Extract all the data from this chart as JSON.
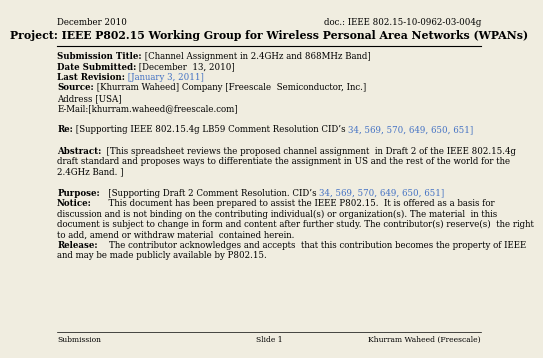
{
  "bg_color": "#f0ede0",
  "title": "Project: IEEE P802.15 Working Group for Wireless Personal Area Networks (WPANs)",
  "header_left": "December 2010",
  "header_right": "doc.: IEEE 802.15-10-0962-03-004g",
  "footer_left": "Submission",
  "footer_center": "Slide 1",
  "footer_right": "Khurram Waheed (Freescale)",
  "blue": "#4472c4",
  "black": "#000000",
  "body_font": 6.2,
  "header_font": 6.2,
  "title_font": 7.8,
  "footer_font": 5.5
}
